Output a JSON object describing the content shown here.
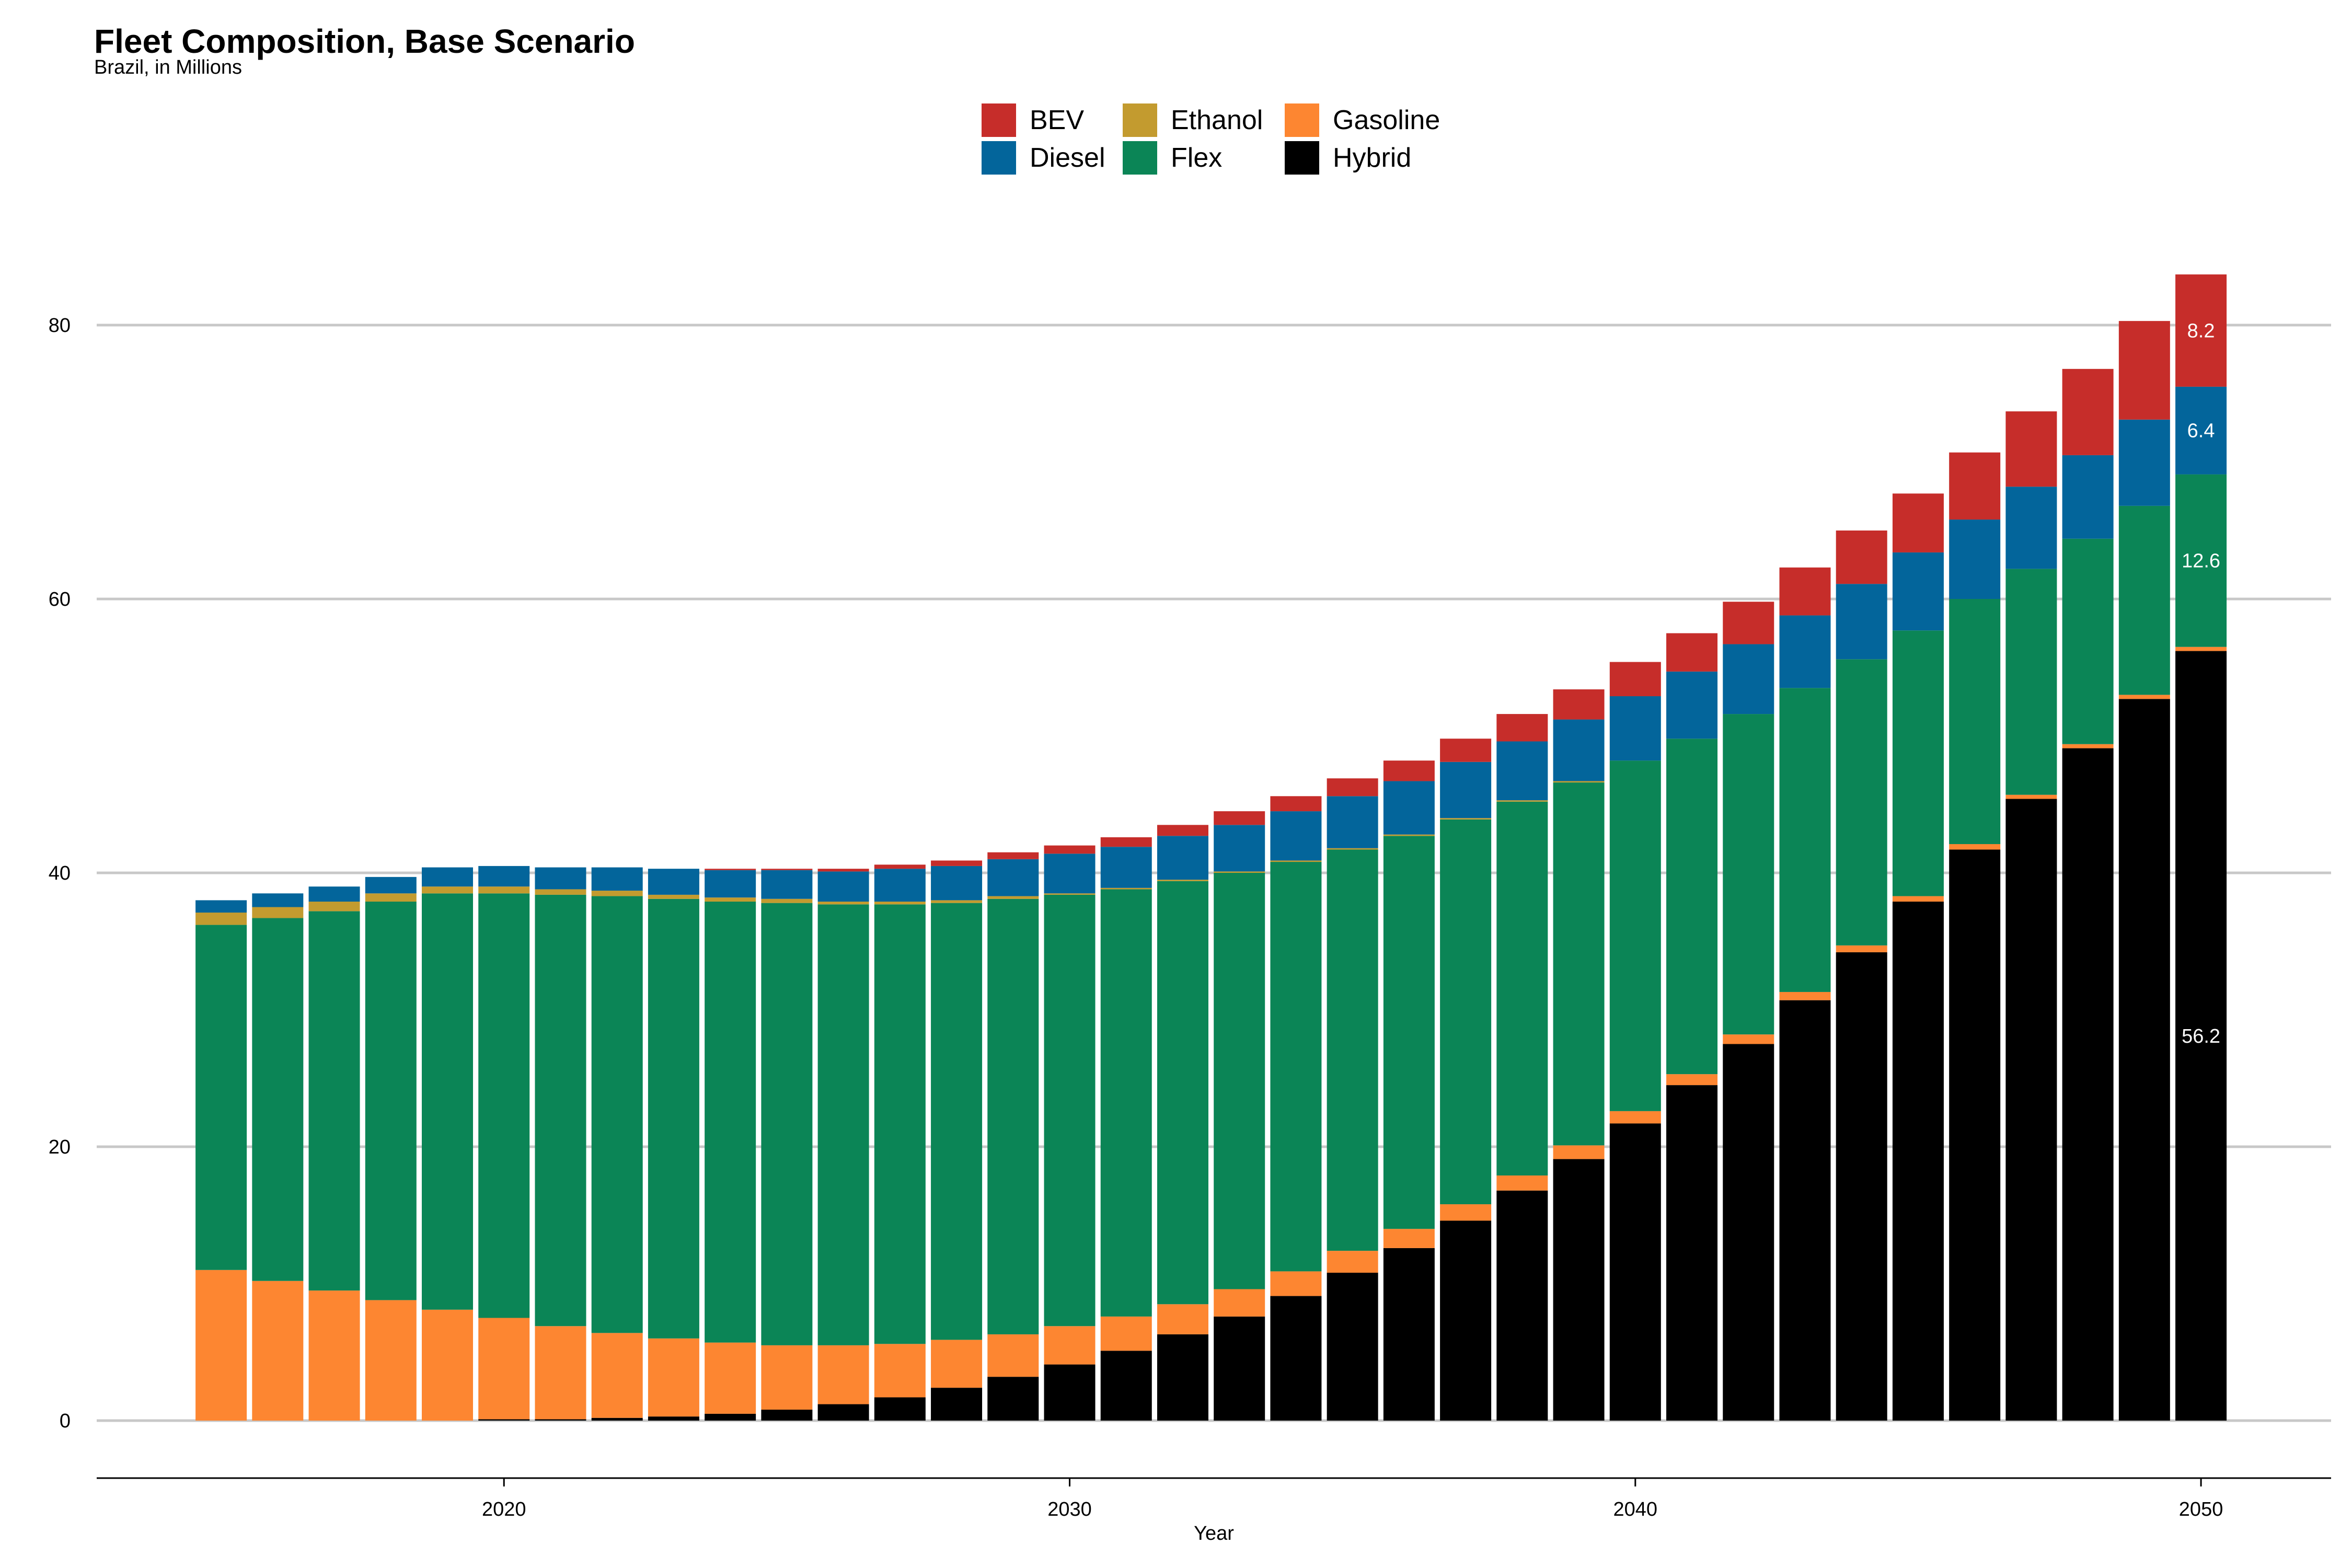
{
  "chart_data": {
    "type": "bar",
    "stacked": true,
    "title": "Fleet Composition, Base Scenario",
    "subtitle": "Brazil, in Millions",
    "xlabel": "Year",
    "ylabel": "",
    "ylim": [
      -4,
      90
    ],
    "xlim": [
      2012.8,
      2052.3
    ],
    "yticks": [
      0,
      20,
      40,
      60,
      80
    ],
    "xticks": [
      2020,
      2030,
      2040,
      2050
    ],
    "grid": "horizontal",
    "legend_position": "top",
    "x": [
      2015,
      2016,
      2017,
      2018,
      2019,
      2020,
      2021,
      2022,
      2023,
      2024,
      2025,
      2026,
      2027,
      2028,
      2029,
      2030,
      2031,
      2032,
      2033,
      2034,
      2035,
      2036,
      2037,
      2038,
      2039,
      2040,
      2041,
      2042,
      2043,
      2044,
      2045,
      2046,
      2047,
      2048,
      2049,
      2050
    ],
    "series": [
      {
        "name": "Hybrid",
        "color": "#000000",
        "values": [
          0,
          0,
          0,
          0,
          0,
          0.1,
          0.1,
          0.2,
          0.3,
          0.5,
          0.8,
          1.2,
          1.7,
          2.4,
          3.2,
          4.1,
          5.1,
          6.3,
          7.6,
          9.1,
          10.8,
          12.6,
          14.6,
          16.8,
          19.1,
          21.7,
          24.5,
          27.5,
          30.7,
          34.2,
          37.9,
          41.7,
          45.4,
          49.1,
          52.7,
          56.2
        ]
      },
      {
        "name": "Gasoline",
        "color": "#fd8631",
        "values": [
          11.0,
          10.2,
          9.5,
          8.8,
          8.1,
          7.4,
          6.8,
          6.2,
          5.7,
          5.2,
          4.7,
          4.3,
          3.9,
          3.5,
          3.1,
          2.8,
          2.5,
          2.2,
          2.0,
          1.8,
          1.6,
          1.4,
          1.2,
          1.1,
          1.0,
          0.9,
          0.8,
          0.7,
          0.6,
          0.5,
          0.4,
          0.4,
          0.3,
          0.3,
          0.3,
          0.3
        ]
      },
      {
        "name": "Flex",
        "color": "#0b8556",
        "values": [
          25.2,
          26.5,
          27.7,
          29.1,
          30.4,
          31.0,
          31.5,
          31.9,
          32.1,
          32.2,
          32.3,
          32.2,
          32.1,
          31.9,
          31.8,
          31.5,
          31.2,
          30.9,
          30.4,
          29.9,
          29.3,
          28.7,
          28.1,
          27.3,
          26.5,
          25.6,
          24.5,
          23.4,
          22.2,
          20.9,
          19.4,
          17.9,
          16.5,
          15.0,
          13.8,
          12.6
        ]
      },
      {
        "name": "Ethanol",
        "color": "#c39b2f",
        "values": [
          0.9,
          0.8,
          0.7,
          0.6,
          0.5,
          0.5,
          0.4,
          0.4,
          0.3,
          0.3,
          0.3,
          0.2,
          0.2,
          0.2,
          0.2,
          0.1,
          0.1,
          0.1,
          0.1,
          0.1,
          0.1,
          0.1,
          0.1,
          0.1,
          0.1,
          0,
          0,
          0,
          0,
          0,
          0,
          0,
          0,
          0,
          0,
          0
        ]
      },
      {
        "name": "Diesel",
        "color": "#03659b",
        "values": [
          0.9,
          1.0,
          1.1,
          1.2,
          1.4,
          1.5,
          1.6,
          1.7,
          1.9,
          2.0,
          2.1,
          2.2,
          2.4,
          2.5,
          2.7,
          2.9,
          3.0,
          3.2,
          3.4,
          3.6,
          3.8,
          3.9,
          4.1,
          4.3,
          4.5,
          4.7,
          4.9,
          5.1,
          5.3,
          5.5,
          5.7,
          5.8,
          6.0,
          6.1,
          6.3,
          6.4
        ]
      },
      {
        "name": "BEV",
        "color": "#c62d2a",
        "values": [
          0,
          0,
          0,
          0,
          0,
          0,
          0,
          0,
          0,
          0.1,
          0.1,
          0.2,
          0.3,
          0.4,
          0.5,
          0.6,
          0.7,
          0.8,
          1.0,
          1.1,
          1.3,
          1.5,
          1.7,
          2.0,
          2.2,
          2.5,
          2.8,
          3.1,
          3.5,
          3.9,
          4.3,
          4.9,
          5.5,
          6.3,
          7.2,
          8.2
        ]
      }
    ],
    "annotations": [
      {
        "x": 2050,
        "series": "Hybrid",
        "text": "56.2"
      },
      {
        "x": 2050,
        "series": "Flex",
        "text": "12.6"
      },
      {
        "x": 2050,
        "series": "Diesel",
        "text": "6.4"
      },
      {
        "x": 2050,
        "series": "BEV",
        "text": "8.2"
      }
    ]
  },
  "legend": {
    "items": [
      {
        "label": "BEV",
        "color": "#c62d2a"
      },
      {
        "label": "Ethanol",
        "color": "#c39b2f"
      },
      {
        "label": "Gasoline",
        "color": "#fd8631"
      },
      {
        "label": "Diesel",
        "color": "#03659b"
      },
      {
        "label": "Flex",
        "color": "#0b8556"
      },
      {
        "label": "Hybrid",
        "color": "#000000"
      }
    ]
  },
  "colors": {
    "grid": "#c8c8c8",
    "axis": "#000000",
    "background": "#ffffff"
  }
}
